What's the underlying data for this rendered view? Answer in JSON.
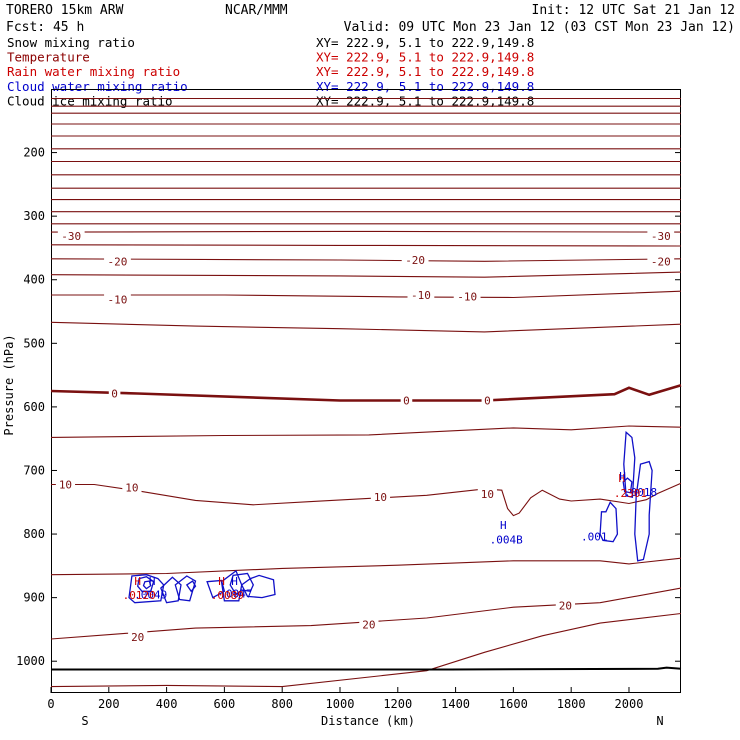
{
  "header": {
    "model": "TORERO  15km ARW",
    "org": "NCAR/MMM",
    "init": "Init: 12 UTC Sat 21 Jan 12",
    "fcst": "Fcst:   45 h",
    "valid": "Valid: 09 UTC Mon 23 Jan 12 (03 CST Mon 23 Jan 12)"
  },
  "legend": [
    {
      "label": "Snow mixing ratio",
      "xy": "XY= 222.9,  5.1 to 222.9,149.8",
      "color": "#000000",
      "xy_color": "#000000"
    },
    {
      "label": "Temperature",
      "xy": "XY= 222.9,  5.1 to 222.9,149.8",
      "color": "#8b0000",
      "xy_color": "#cc0000"
    },
    {
      "label": "Rain water mixing ratio",
      "xy": "XY= 222.9,  5.1 to 222.9,149.8",
      "color": "#cc0000",
      "xy_color": "#cc0000"
    },
    {
      "label": "Cloud water mixing ratio",
      "xy": "XY= 222.9,  5.1 to 222.9,149.8",
      "color": "#0000cc",
      "xy_color": "#0000cc"
    },
    {
      "label": "Cloud ice mixing ratio",
      "xy": "XY= 222.9,  5.1 to 222.9,149.8",
      "color": "#000000",
      "xy_color": "#000000"
    }
  ],
  "chart_data": {
    "type": "cross-section contour",
    "xlabel": "Distance (km)",
    "ylabel": "Pressure (hPa)",
    "xlim": [
      0,
      2180
    ],
    "ylim": [
      1050,
      100
    ],
    "x_ticks": [
      0,
      200,
      400,
      600,
      800,
      1000,
      1200,
      1400,
      1600,
      1800,
      2000
    ],
    "x_tick_labels": [
      "0",
      "200",
      "400",
      "600",
      "800",
      "1000",
      "1200",
      "1400",
      "1600",
      "1800",
      "2000"
    ],
    "y_ticks": [
      200,
      300,
      400,
      500,
      600,
      700,
      800,
      900,
      1000
    ],
    "y_tick_labels": [
      "200",
      "300",
      "400",
      "500",
      "600",
      "700",
      "800",
      "900",
      "1000"
    ],
    "end_labels": {
      "left": "S",
      "right": "N"
    },
    "colors": {
      "temperature": "#7a1010",
      "freezing": "#7a1010",
      "cloud_water": "#1010c8",
      "rain": "#cc1111",
      "ground": "#000000"
    },
    "temperature_contours": [
      {
        "t": -60,
        "points": [
          [
            0,
            115
          ],
          [
            2180,
            115
          ]
        ]
      },
      {
        "t": -58,
        "points": [
          [
            0,
            127
          ],
          [
            2180,
            127
          ]
        ]
      },
      {
        "t": -56,
        "points": [
          [
            0,
            138
          ],
          [
            2180,
            138
          ]
        ]
      },
      {
        "t": -54,
        "points": [
          [
            0,
            155
          ],
          [
            2180,
            155
          ]
        ]
      },
      {
        "t": -52,
        "points": [
          [
            0,
            174
          ],
          [
            2180,
            174
          ]
        ]
      },
      {
        "t": -50,
        "points": [
          [
            0,
            194
          ],
          [
            2180,
            194
          ]
        ]
      },
      {
        "t": -48,
        "points": [
          [
            0,
            214
          ],
          [
            2180,
            214
          ]
        ]
      },
      {
        "t": -46,
        "points": [
          [
            0,
            235
          ],
          [
            2180,
            235
          ]
        ]
      },
      {
        "t": -44,
        "points": [
          [
            0,
            256
          ],
          [
            2180,
            256
          ]
        ]
      },
      {
        "t": -42,
        "points": [
          [
            0,
            274
          ],
          [
            2180,
            274
          ]
        ]
      },
      {
        "t": -40,
        "points": [
          [
            0,
            293
          ],
          [
            2180,
            293
          ]
        ]
      },
      {
        "t": -35,
        "points": [
          [
            0,
            312
          ],
          [
            2180,
            312
          ]
        ]
      },
      {
        "t": -30,
        "points": [
          [
            0,
            325
          ],
          [
            1000,
            324
          ],
          [
            2180,
            325
          ]
        ]
      },
      {
        "t": -25,
        "points": [
          [
            0,
            345
          ],
          [
            1000,
            346
          ],
          [
            2180,
            347
          ]
        ]
      },
      {
        "t": -20,
        "points": [
          [
            0,
            367
          ],
          [
            1000,
            369
          ],
          [
            1500,
            371
          ],
          [
            2180,
            367
          ]
        ]
      },
      {
        "t": -15,
        "points": [
          [
            0,
            392
          ],
          [
            1000,
            394
          ],
          [
            1500,
            396
          ],
          [
            2180,
            388
          ]
        ]
      },
      {
        "t": -10,
        "points": [
          [
            0,
            424
          ],
          [
            600,
            424
          ],
          [
            1200,
            427
          ],
          [
            1600,
            428
          ],
          [
            2180,
            418
          ]
        ]
      },
      {
        "t": -5,
        "points": [
          [
            0,
            467
          ],
          [
            500,
            473
          ],
          [
            1000,
            477
          ],
          [
            1500,
            482
          ],
          [
            2180,
            470
          ]
        ]
      },
      {
        "t": 0,
        "points": [
          [
            0,
            575
          ],
          [
            300,
            579
          ],
          [
            1000,
            590
          ],
          [
            1500,
            590
          ],
          [
            1950,
            580
          ],
          [
            2000,
            570
          ],
          [
            2070,
            581
          ],
          [
            2180,
            566
          ]
        ]
      },
      {
        "t": 5,
        "points": [
          [
            0,
            648
          ],
          [
            600,
            645
          ],
          [
            1100,
            644
          ],
          [
            1600,
            633
          ],
          [
            1800,
            636
          ],
          [
            2000,
            630
          ],
          [
            2180,
            632
          ]
        ]
      },
      {
        "t": 10,
        "points": [
          [
            0,
            722
          ],
          [
            150,
            722
          ],
          [
            300,
            732
          ],
          [
            500,
            747
          ],
          [
            700,
            754
          ],
          [
            900,
            749
          ],
          [
            1300,
            739
          ],
          [
            1500,
            729
          ],
          [
            1560,
            731
          ],
          [
            1580,
            760
          ],
          [
            1600,
            771
          ],
          [
            1620,
            767
          ],
          [
            1660,
            743
          ],
          [
            1700,
            731
          ],
          [
            1760,
            745
          ],
          [
            1800,
            748
          ],
          [
            1900,
            745
          ],
          [
            2000,
            752
          ],
          [
            2060,
            746
          ],
          [
            2100,
            736
          ],
          [
            2180,
            720
          ]
        ]
      },
      {
        "t": 15,
        "points": [
          [
            0,
            864
          ],
          [
            400,
            862
          ],
          [
            800,
            854
          ],
          [
            1200,
            849
          ],
          [
            1600,
            842
          ],
          [
            1900,
            842
          ],
          [
            2000,
            847
          ],
          [
            2180,
            838
          ]
        ]
      },
      {
        "t": 20,
        "points": [
          [
            0,
            965
          ],
          [
            500,
            948
          ],
          [
            900,
            944
          ],
          [
            1300,
            932
          ],
          [
            1600,
            915
          ],
          [
            1900,
            908
          ],
          [
            2180,
            885
          ]
        ]
      },
      {
        "t": 25,
        "points": [
          [
            0,
            1040
          ],
          [
            400,
            1038
          ],
          [
            800,
            1040
          ],
          [
            1300,
            1015
          ],
          [
            1500,
            986
          ],
          [
            1700,
            960
          ],
          [
            1900,
            940
          ],
          [
            2180,
            925
          ]
        ]
      }
    ],
    "temperature_labels": [
      {
        "x": 70,
        "p": 331,
        "text": "-30"
      },
      {
        "x": 2110,
        "p": 331,
        "text": "-30"
      },
      {
        "x": 230,
        "p": 371,
        "text": "-20"
      },
      {
        "x": 1260,
        "p": 369,
        "text": "-20"
      },
      {
        "x": 2110,
        "p": 371,
        "text": "-20"
      },
      {
        "x": 230,
        "p": 431,
        "text": "-10"
      },
      {
        "x": 1280,
        "p": 424,
        "text": "-10"
      },
      {
        "x": 1440,
        "p": 426,
        "text": "-10"
      },
      {
        "x": 220,
        "p": 579,
        "text": "0"
      },
      {
        "x": 1230,
        "p": 590,
        "text": "0"
      },
      {
        "x": 1510,
        "p": 590,
        "text": "0"
      },
      {
        "x": 50,
        "p": 722,
        "text": "10"
      },
      {
        "x": 280,
        "p": 727,
        "text": "10"
      },
      {
        "x": 1140,
        "p": 742,
        "text": "10"
      },
      {
        "x": 1510,
        "p": 737,
        "text": "10"
      },
      {
        "x": 1780,
        "p": 912,
        "text": "20"
      },
      {
        "x": 1100,
        "p": 942,
        "text": "20"
      },
      {
        "x": 300,
        "p": 962,
        "text": "20"
      }
    ],
    "cloud_water_contours": [
      {
        "points": [
          [
            270,
            900
          ],
          [
            280,
            866
          ],
          [
            330,
            864
          ],
          [
            370,
            870
          ],
          [
            390,
            880
          ],
          [
            380,
            905
          ],
          [
            290,
            908
          ],
          [
            270,
            900
          ]
        ]
      },
      {
        "points": [
          [
            300,
            882
          ],
          [
            305,
            870
          ],
          [
            330,
            867
          ],
          [
            355,
            875
          ],
          [
            345,
            890
          ],
          [
            315,
            890
          ],
          [
            300,
            882
          ]
        ]
      },
      {
        "points": [
          [
            320,
            881
          ],
          [
            325,
            875
          ],
          [
            340,
            874
          ],
          [
            345,
            881
          ],
          [
            330,
            886
          ],
          [
            320,
            881
          ]
        ]
      },
      {
        "points": [
          [
            380,
            885
          ],
          [
            420,
            868
          ],
          [
            450,
            880
          ],
          [
            440,
            905
          ],
          [
            400,
            908
          ],
          [
            380,
            885
          ]
        ]
      },
      {
        "points": [
          [
            430,
            880
          ],
          [
            470,
            866
          ],
          [
            500,
            874
          ],
          [
            480,
            905
          ],
          [
            445,
            903
          ],
          [
            430,
            880
          ]
        ]
      },
      {
        "points": [
          [
            470,
            880
          ],
          [
            490,
            874
          ],
          [
            500,
            882
          ],
          [
            485,
            890
          ],
          [
            470,
            880
          ]
        ]
      },
      {
        "points": [
          [
            540,
            875
          ],
          [
            590,
            873
          ],
          [
            600,
            890
          ],
          [
            560,
            900
          ],
          [
            540,
            875
          ]
        ]
      },
      {
        "points": [
          [
            590,
            875
          ],
          [
            640,
            858
          ],
          [
            660,
            880
          ],
          [
            650,
            905
          ],
          [
            600,
            905
          ],
          [
            590,
            875
          ]
        ]
      },
      {
        "points": [
          [
            620,
            880
          ],
          [
            630,
            865
          ],
          [
            680,
            862
          ],
          [
            700,
            880
          ],
          [
            690,
            890
          ],
          [
            660,
            888
          ],
          [
            640,
            895
          ],
          [
            620,
            880
          ]
        ]
      },
      {
        "points": [
          [
            660,
            880
          ],
          [
            690,
            870
          ],
          [
            720,
            865
          ],
          [
            770,
            872
          ],
          [
            775,
            895
          ],
          [
            730,
            900
          ],
          [
            680,
            898
          ],
          [
            660,
            880
          ]
        ]
      },
      {
        "points": [
          [
            1900,
            800
          ],
          [
            1905,
            765
          ],
          [
            1920,
            765
          ],
          [
            1935,
            750
          ],
          [
            1955,
            760
          ],
          [
            1960,
            800
          ],
          [
            1945,
            812
          ],
          [
            1910,
            810
          ],
          [
            1900,
            800
          ]
        ]
      },
      {
        "points": [
          [
            1990,
            640
          ],
          [
            2010,
            648
          ],
          [
            2020,
            680
          ],
          [
            2012,
            742
          ],
          [
            1990,
            740
          ],
          [
            1982,
            690
          ],
          [
            1990,
            640
          ]
        ]
      },
      {
        "points": [
          [
            1980,
            718
          ],
          [
            1995,
            712
          ],
          [
            2010,
            718
          ],
          [
            2005,
            735
          ],
          [
            1985,
            733
          ],
          [
            1980,
            718
          ]
        ]
      },
      {
        "points": [
          [
            2040,
            690
          ],
          [
            2070,
            686
          ],
          [
            2080,
            700
          ],
          [
            2070,
            770
          ],
          [
            2070,
            800
          ],
          [
            2050,
            840
          ],
          [
            2030,
            842
          ],
          [
            2020,
            800
          ],
          [
            2025,
            740
          ],
          [
            2040,
            690
          ]
        ]
      }
    ],
    "water_labels": [
      {
        "x": 345,
        "p": 901,
        "text": ".0049",
        "color": "#0000cc"
      },
      {
        "x": 305,
        "p": 902,
        "text": ".0120",
        "color": "#cc0000"
      },
      {
        "x": 640,
        "p": 900,
        "text": ".0047",
        "color": "#0000cc"
      },
      {
        "x": 610,
        "p": 902,
        "text": ".0089",
        "color": "#cc0000"
      },
      {
        "x": 1575,
        "p": 815,
        "text": ".004B",
        "color": "#0000cc"
      },
      {
        "x": 1880,
        "p": 810,
        "text": ".001",
        "color": "#0000cc"
      },
      {
        "x": 2040,
        "p": 740,
        "text": ".0018",
        "color": "#0000cc"
      },
      {
        "x": 2005,
        "p": 742,
        "text": ".2301",
        "color": "#cc0000"
      }
    ],
    "high_markers": [
      {
        "x": 300,
        "p": 880,
        "text": "H",
        "color": "#cc0000"
      },
      {
        "x": 350,
        "p": 880,
        "text": "H",
        "color": "#0000cc"
      },
      {
        "x": 590,
        "p": 880,
        "text": "H",
        "color": "#cc0000"
      },
      {
        "x": 635,
        "p": 880,
        "text": "H",
        "color": "#0000cc"
      },
      {
        "x": 1565,
        "p": 792,
        "text": "H",
        "color": "#0000cc"
      },
      {
        "x": 1975,
        "p": 718,
        "text": "H",
        "color": "#cc0000"
      },
      {
        "x": 1978,
        "p": 715,
        "text": "H",
        "color": "#0000cc"
      }
    ],
    "ground_line": [
      [
        0,
        1013
      ],
      [
        1380,
        1013
      ],
      [
        2100,
        1012
      ],
      [
        2130,
        1010
      ],
      [
        2180,
        1012
      ]
    ]
  }
}
